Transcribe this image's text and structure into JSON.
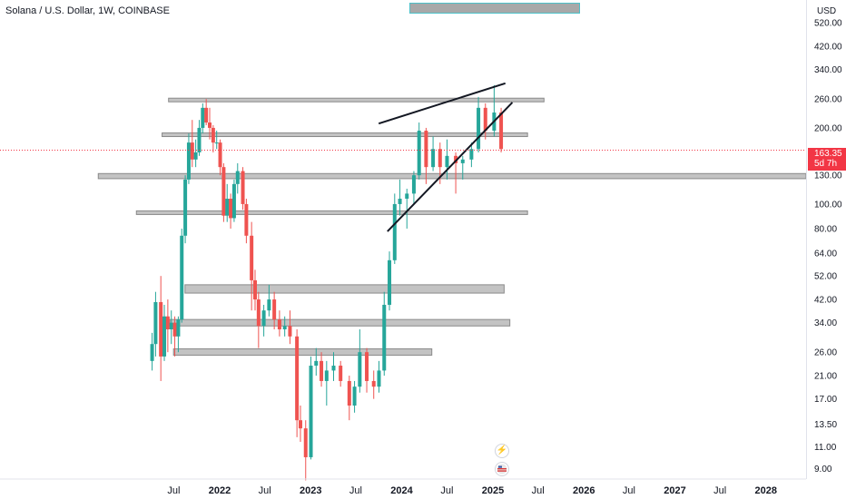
{
  "header": {
    "title": "Solana / U.S. Dollar, 1W, COINBASE",
    "currency": "USD"
  },
  "price_tag": {
    "price": "163.35",
    "countdown": "5d 7h"
  },
  "icons": [
    "flash-icon",
    "flag-icon"
  ],
  "colors": {
    "up": "#26a69a",
    "down": "#ef5350",
    "zone_fill": "#c3c3c3",
    "zone_border": "#8a8a8a",
    "price_tag": "#f23645"
  },
  "chart_data": {
    "type": "candlestick",
    "title": "Solana / U.S. Dollar, 1W, COINBASE",
    "y_scale": "log",
    "ylim": [
      8.2,
      640
    ],
    "y_ticks": [
      "520.00",
      "420.00",
      "340.00",
      "260.00",
      "200.00",
      "130.00",
      "100.00",
      "80.00",
      "64.00",
      "52.00",
      "42.00",
      "34.00",
      "26.00",
      "21.00",
      "17.00",
      "13.50",
      "11.00",
      "9.00"
    ],
    "x_ticks": [
      "Jul",
      "2022",
      "Jul",
      "2023",
      "Jul",
      "2024",
      "Jul",
      "2025",
      "Jul",
      "2026",
      "Jul",
      "2027",
      "Jul",
      "2028"
    ],
    "last_price": 163.35,
    "candles": [
      [
        "2021-04-05",
        24,
        31,
        22,
        28
      ],
      [
        "2021-04-19",
        28,
        45,
        25,
        41
      ],
      [
        "2021-05-10",
        41,
        52,
        20,
        25
      ],
      [
        "2021-05-24",
        25,
        40,
        24,
        36
      ],
      [
        "2021-06-07",
        36,
        42,
        26,
        32
      ],
      [
        "2021-06-21",
        32,
        38,
        28,
        34
      ],
      [
        "2021-07-05",
        34,
        36,
        25,
        30
      ],
      [
        "2021-07-19",
        30,
        36,
        26,
        35
      ],
      [
        "2021-08-02",
        35,
        80,
        34,
        75
      ],
      [
        "2021-08-16",
        75,
        130,
        70,
        125
      ],
      [
        "2021-08-30",
        125,
        190,
        120,
        175
      ],
      [
        "2021-09-13",
        175,
        215,
        140,
        150
      ],
      [
        "2021-09-27",
        150,
        180,
        140,
        160
      ],
      [
        "2021-10-11",
        160,
        215,
        155,
        200
      ],
      [
        "2021-10-25",
        200,
        250,
        190,
        240
      ],
      [
        "2021-11-08",
        240,
        260,
        205,
        210
      ],
      [
        "2021-11-22",
        210,
        240,
        180,
        200
      ],
      [
        "2021-12-06",
        200,
        205,
        160,
        175
      ],
      [
        "2021-12-20",
        175,
        195,
        165,
        175
      ],
      [
        "2022-01-03",
        175,
        180,
        130,
        140
      ],
      [
        "2022-01-17",
        140,
        145,
        85,
        90
      ],
      [
        "2022-01-31",
        90,
        120,
        85,
        105
      ],
      [
        "2022-02-14",
        105,
        110,
        80,
        88
      ],
      [
        "2022-02-28",
        88,
        125,
        85,
        120
      ],
      [
        "2022-03-14",
        120,
        145,
        110,
        135
      ],
      [
        "2022-04-04",
        135,
        140,
        95,
        100
      ],
      [
        "2022-04-18",
        100,
        105,
        70,
        75
      ],
      [
        "2022-05-09",
        75,
        85,
        38,
        50
      ],
      [
        "2022-05-23",
        50,
        55,
        38,
        42
      ],
      [
        "2022-06-06",
        42,
        45,
        27,
        33
      ],
      [
        "2022-06-27",
        33,
        40,
        30,
        38
      ],
      [
        "2022-07-18",
        38,
        48,
        36,
        42
      ],
      [
        "2022-08-08",
        42,
        45,
        32,
        35
      ],
      [
        "2022-08-29",
        35,
        38,
        30,
        32
      ],
      [
        "2022-09-19",
        32,
        36,
        30,
        33
      ],
      [
        "2022-10-10",
        33,
        38,
        28,
        30
      ],
      [
        "2022-11-07",
        30,
        32,
        12,
        14
      ],
      [
        "2022-11-21",
        14,
        16,
        11.5,
        13
      ],
      [
        "2022-12-12",
        13,
        14,
        8.1,
        10
      ],
      [
        "2023-01-02",
        10,
        25,
        9.8,
        23
      ],
      [
        "2023-01-23",
        23,
        27,
        21,
        24
      ],
      [
        "2023-02-13",
        24,
        26,
        19,
        20
      ],
      [
        "2023-03-06",
        20,
        24,
        16,
        22
      ],
      [
        "2023-04-03",
        22,
        26,
        20,
        23
      ],
      [
        "2023-05-01",
        23,
        24,
        19,
        20
      ],
      [
        "2023-06-05",
        20,
        21,
        14,
        16
      ],
      [
        "2023-06-26",
        16,
        20,
        15,
        19
      ],
      [
        "2023-07-17",
        19,
        32,
        18,
        26
      ],
      [
        "2023-08-14",
        26,
        27,
        18,
        20
      ],
      [
        "2023-09-11",
        20,
        22,
        17,
        19
      ],
      [
        "2023-10-02",
        19,
        24,
        18,
        22
      ],
      [
        "2023-10-23",
        22,
        45,
        21,
        40
      ],
      [
        "2023-11-13",
        40,
        65,
        38,
        60
      ],
      [
        "2023-12-04",
        60,
        110,
        58,
        100
      ],
      [
        "2023-12-25",
        100,
        125,
        90,
        105
      ],
      [
        "2024-01-22",
        105,
        115,
        80,
        110
      ],
      [
        "2024-02-19",
        110,
        135,
        100,
        130
      ],
      [
        "2024-03-11",
        130,
        210,
        125,
        195
      ],
      [
        "2024-04-08",
        195,
        200,
        120,
        140
      ],
      [
        "2024-05-06",
        140,
        185,
        135,
        165
      ],
      [
        "2024-06-03",
        165,
        175,
        120,
        140
      ],
      [
        "2024-07-01",
        140,
        180,
        125,
        155
      ],
      [
        "2024-08-05",
        155,
        160,
        110,
        145
      ],
      [
        "2024-09-02",
        145,
        155,
        125,
        150
      ],
      [
        "2024-10-07",
        150,
        175,
        140,
        165
      ],
      [
        "2024-11-04",
        165,
        265,
        160,
        240
      ],
      [
        "2024-12-02",
        240,
        250,
        180,
        195
      ],
      [
        "2025-01-06",
        195,
        295,
        185,
        230
      ],
      [
        "2025-02-03",
        230,
        240,
        160,
        165
      ]
    ],
    "annotations": {
      "horizontal_zones": [
        {
          "from": "2021-06-10",
          "to": "2025-07-25",
          "low": 256,
          "high": 262
        },
        {
          "from": "2021-05-15",
          "to": "2025-05-20",
          "low": 185,
          "high": 191
        },
        {
          "from": "2020-09-01",
          "to": "2028-07-01",
          "low": 126,
          "high": 132
        },
        {
          "from": "2021-02-01",
          "to": "2025-05-20",
          "low": 91,
          "high": 94
        },
        {
          "from": "2021-08-15",
          "to": "2025-02-15",
          "low": 44.5,
          "high": 48
        },
        {
          "from": "2021-06-15",
          "to": "2025-03-10",
          "low": 33,
          "high": 35
        },
        {
          "from": "2021-06-30",
          "to": "2024-05-01",
          "low": 25.3,
          "high": 26.8
        }
      ],
      "trendlines": [
        {
          "from": [
            "2023-10-01",
            208
          ],
          "to": [
            "2025-02-20",
            300
          ]
        },
        {
          "from": [
            "2023-11-05",
            78
          ],
          "to": [
            "2025-03-20",
            252
          ]
        }
      ]
    }
  }
}
